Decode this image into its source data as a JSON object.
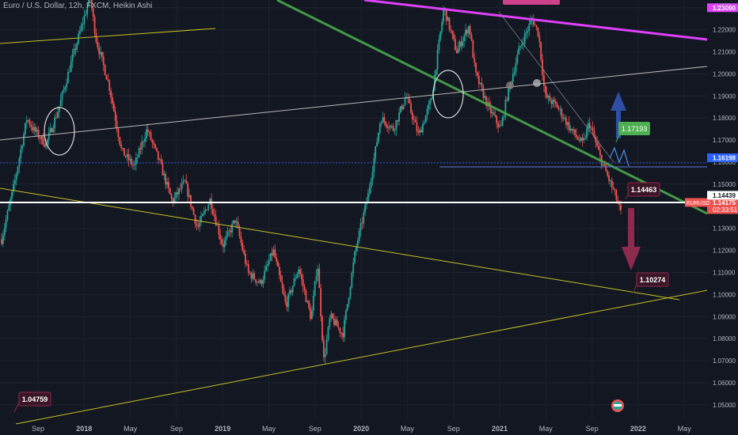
{
  "header": {
    "title": "Euro / U.S. Dollar, 12h, FXCM, Heikin Ashi"
  },
  "price_axis": {
    "currency": "USD"
  },
  "colors": {
    "background": "#131722",
    "up": "#26a69a",
    "down": "#ef5350",
    "channel": "#b8b8b8",
    "green_line": "#4caf50",
    "yellow_line": "#c6c024",
    "magenta_line": "#e040fb",
    "blue_level": "#2962ff",
    "white_level": "#ffffff"
  },
  "chart_data": {
    "type": "candlestick",
    "ylim": [
      1.0435,
      1.2335
    ],
    "y_ticks": [
      "1.23000",
      "1.22000",
      "1.21000",
      "1.20000",
      "1.19000",
      "1.18000",
      "1.17000",
      "1.16000",
      "1.15000",
      "1.14000",
      "1.13000",
      "1.12000",
      "1.11000",
      "1.10000",
      "1.09000",
      "1.08000",
      "1.07000",
      "1.06000",
      "1.05000"
    ],
    "x_ticks": [
      "Sep",
      "2018",
      "May",
      "Sep",
      "2019",
      "May",
      "Sep",
      "2020",
      "May",
      "Sep",
      "2021",
      "May",
      "Sep",
      "2022",
      "May"
    ],
    "price_path": [
      [
        0,
        1.125
      ],
      [
        2,
        1.15
      ],
      [
        4,
        1.18
      ],
      [
        5,
        1.175
      ],
      [
        7,
        1.168
      ],
      [
        9,
        1.184
      ],
      [
        11,
        1.205
      ],
      [
        13,
        1.225
      ],
      [
        14,
        1.235
      ],
      [
        15,
        1.215
      ],
      [
        17,
        1.195
      ],
      [
        19,
        1.165
      ],
      [
        21,
        1.158
      ],
      [
        23,
        1.175
      ],
      [
        25,
        1.16
      ],
      [
        27,
        1.142
      ],
      [
        29,
        1.151
      ],
      [
        31,
        1.13
      ],
      [
        33,
        1.143
      ],
      [
        35,
        1.122
      ],
      [
        37,
        1.134
      ],
      [
        39,
        1.11
      ],
      [
        41,
        1.105
      ],
      [
        43,
        1.12
      ],
      [
        45,
        1.095
      ],
      [
        47,
        1.112
      ],
      [
        49,
        1.089
      ],
      [
        50,
        1.115
      ],
      [
        51,
        1.07
      ],
      [
        52,
        1.09
      ],
      [
        54,
        1.082
      ],
      [
        56,
        1.12
      ],
      [
        58,
        1.145
      ],
      [
        60,
        1.18
      ],
      [
        62,
        1.175
      ],
      [
        64,
        1.19
      ],
      [
        66,
        1.172
      ],
      [
        68,
        1.188
      ],
      [
        70,
        1.23
      ],
      [
        72,
        1.21
      ],
      [
        74,
        1.222
      ],
      [
        75,
        1.2
      ],
      [
        77,
        1.185
      ],
      [
        79,
        1.175
      ],
      [
        80,
        1.19
      ],
      [
        82,
        1.212
      ],
      [
        84,
        1.225
      ],
      [
        85,
        1.218
      ],
      [
        86,
        1.19
      ],
      [
        88,
        1.185
      ],
      [
        90,
        1.175
      ],
      [
        92,
        1.168
      ],
      [
        93,
        1.178
      ],
      [
        95,
        1.16
      ],
      [
        97,
        1.146
      ],
      [
        98,
        1.137
      ]
    ],
    "levels": [
      {
        "name": "EURUSD",
        "value": 1.14175,
        "bg": "#ef5350"
      },
      {
        "name": "",
        "value": 1.16198,
        "bg": "#2962ff"
      },
      {
        "name": "",
        "value": 1.14439,
        "bg": "#ffffff"
      },
      {
        "name": "",
        "value": 1.1387,
        "bg": "#ef5350"
      },
      {
        "name": "",
        "value": 1.23,
        "bg": "#e040fb"
      }
    ],
    "countdown": "02:33:51",
    "annotations": [
      {
        "text": "1.17193",
        "style": "green"
      },
      {
        "text": "1.14463",
        "style": "maroon"
      },
      {
        "text": "1.10274",
        "style": "maroon"
      },
      {
        "text": "1.04759",
        "style": "maroon"
      }
    ]
  }
}
